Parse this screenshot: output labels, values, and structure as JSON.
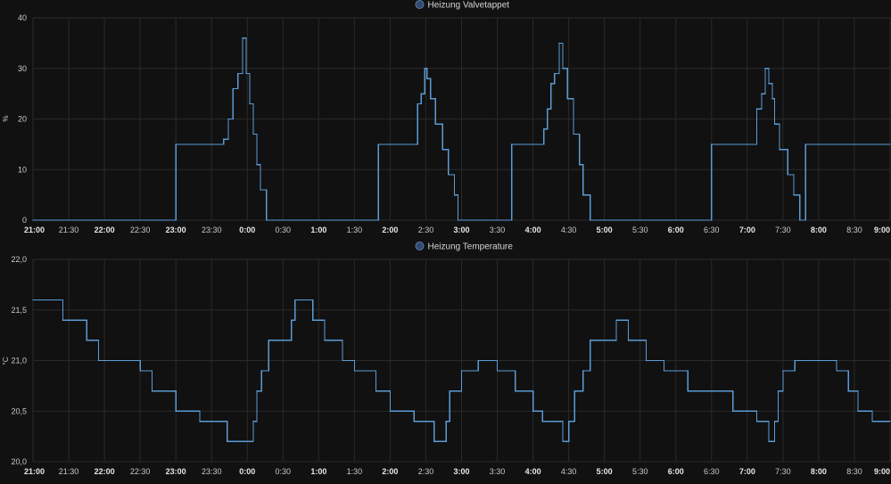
{
  "chart_data": [
    {
      "type": "line",
      "step": true,
      "legend": "Heizung Valvetappet",
      "unit": "%",
      "ylim": [
        0,
        40
      ],
      "yticks": [
        "0",
        "10",
        "20",
        "30",
        "40"
      ],
      "xlim": [
        0,
        720
      ],
      "xticks": [
        {
          "label": "21:00",
          "bold": true
        },
        {
          "label": "21:30",
          "bold": false
        },
        {
          "label": "22:00",
          "bold": true
        },
        {
          "label": "22:30",
          "bold": false
        },
        {
          "label": "23:00",
          "bold": true
        },
        {
          "label": "23:30",
          "bold": false
        },
        {
          "label": "0:00",
          "bold": true
        },
        {
          "label": "0:30",
          "bold": false
        },
        {
          "label": "1:00",
          "bold": true
        },
        {
          "label": "1:30",
          "bold": false
        },
        {
          "label": "2:00",
          "bold": true
        },
        {
          "label": "2:30",
          "bold": false
        },
        {
          "label": "3:00",
          "bold": true
        },
        {
          "label": "3:30",
          "bold": false
        },
        {
          "label": "4:00",
          "bold": true
        },
        {
          "label": "4:30",
          "bold": false
        },
        {
          "label": "5:00",
          "bold": true
        },
        {
          "label": "5:30",
          "bold": false
        },
        {
          "label": "6:00",
          "bold": true
        },
        {
          "label": "6:30",
          "bold": false
        },
        {
          "label": "7:00",
          "bold": true
        },
        {
          "label": "7:30",
          "bold": false
        },
        {
          "label": "8:00",
          "bold": true
        },
        {
          "label": "8:30",
          "bold": false
        },
        {
          "label": "9:00",
          "bold": true
        }
      ],
      "grid": true,
      "color": "#5b9bd5",
      "x": [
        "21:00",
        "23:00",
        "23:40",
        "23:44",
        "23:48",
        "23:52",
        "23:56",
        "23:59",
        "0:02",
        "0:05",
        "0:08",
        "0:11",
        "0:16",
        "0:21",
        "0:27",
        "1:50",
        "2:23",
        "2:26",
        "2:29",
        "2:31",
        "2:34",
        "2:38",
        "2:44",
        "2:49",
        "2:54",
        "2:57",
        "3:02",
        "3:42",
        "4:09",
        "4:12",
        "4:15",
        "4:18",
        "4:22",
        "4:25",
        "4:29",
        "4:34",
        "4:39",
        "4:42",
        "4:48",
        "6:30",
        "7:08",
        "7:12",
        "7:15",
        "7:18",
        "7:21",
        "7:23",
        "7:27",
        "7:34",
        "7:39",
        "7:44",
        "7:49",
        "8:31",
        "9:00"
      ],
      "values": [
        0,
        15,
        16,
        20,
        26,
        29,
        36,
        29,
        23,
        17,
        11,
        6,
        0,
        0,
        0,
        15,
        23,
        25,
        30,
        28,
        24,
        19,
        14,
        9,
        5,
        0,
        0,
        15,
        18,
        22,
        27,
        29,
        35,
        30,
        24,
        17,
        11,
        5,
        0,
        15,
        22,
        25,
        30,
        27,
        24,
        19,
        14,
        9,
        5,
        0,
        15,
        15,
        15
      ]
    },
    {
      "type": "line",
      "step": true,
      "legend": "Heizung Temperature",
      "unit": "°C",
      "ylim": [
        20.0,
        22.0
      ],
      "yticks": [
        "20,0",
        "20,5",
        "21,0",
        "21,5",
        "22,0"
      ],
      "xlim": [
        0,
        720
      ],
      "grid": true,
      "color": "#5b9bd5",
      "x": [
        "21:00",
        "21:25",
        "21:45",
        "21:55",
        "22:30",
        "22:40",
        "23:00",
        "23:20",
        "23:43",
        "0:05",
        "0:08",
        "0:12",
        "0:18",
        "0:37",
        "0:40",
        "0:55",
        "1:05",
        "1:20",
        "1:30",
        "1:48",
        "2:00",
        "2:20",
        "2:37",
        "2:47",
        "2:50",
        "3:00",
        "3:14",
        "3:30",
        "3:45",
        "4:00",
        "4:08",
        "4:25",
        "4:30",
        "4:35",
        "4:42",
        "4:48",
        "5:10",
        "5:20",
        "5:35",
        "5:50",
        "6:10",
        "6:30",
        "6:48",
        "7:02",
        "7:08",
        "7:18",
        "7:23",
        "7:26",
        "7:30",
        "7:40",
        "7:56",
        "8:15",
        "8:25",
        "8:33",
        "8:45",
        "9:00"
      ],
      "values": [
        21.6,
        21.4,
        21.2,
        21.0,
        20.9,
        20.7,
        20.5,
        20.4,
        20.2,
        20.4,
        20.7,
        20.9,
        21.2,
        21.4,
        21.6,
        21.4,
        21.2,
        21.0,
        20.9,
        20.7,
        20.5,
        20.4,
        20.2,
        20.4,
        20.7,
        20.9,
        21.0,
        20.9,
        20.7,
        20.5,
        20.4,
        20.2,
        20.4,
        20.7,
        20.9,
        21.2,
        21.4,
        21.2,
        21.0,
        20.9,
        20.7,
        20.7,
        20.5,
        20.5,
        20.4,
        20.2,
        20.4,
        20.7,
        20.9,
        21.0,
        21.0,
        20.9,
        20.7,
        20.5,
        20.4,
        20.4
      ]
    }
  ]
}
